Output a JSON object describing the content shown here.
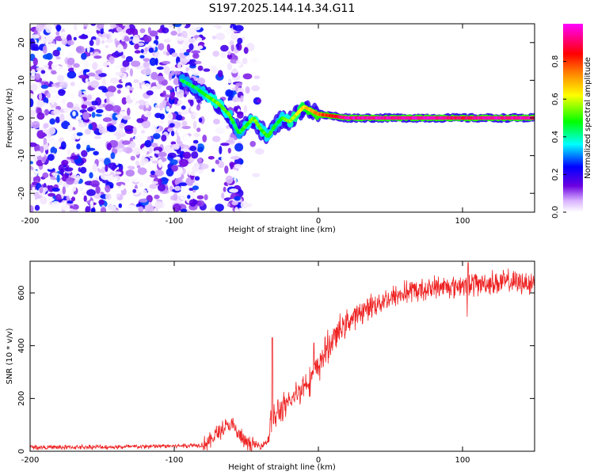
{
  "title": "S197.2025.144.14.34.G11",
  "chart_data": [
    {
      "type": "heatmap",
      "panel": "spectrogram",
      "xlabel": "Height of straight line (km)",
      "ylabel": "Frequency (Hz)",
      "xlim": [
        -200,
        150
      ],
      "ylim": [
        -25,
        25
      ],
      "xticks": [
        -200,
        -100,
        0,
        100
      ],
      "yticks": [
        -20,
        -10,
        0,
        10,
        20
      ],
      "colorbar": {
        "label": "Normalized spectral amplitude",
        "range": [
          0,
          1
        ],
        "ticks": [
          0.0,
          0.2,
          0.4,
          0.6,
          0.8
        ],
        "colormap": [
          "#ffffff",
          "#d9b3ff",
          "#6b00e0",
          "#0000ff",
          "#00ffff",
          "#00ff00",
          "#ffff00",
          "#ff8000",
          "#ff0000",
          "#ff00ff"
        ]
      },
      "ridge": {
        "x": [
          -95,
          -85,
          -78,
          -70,
          -62,
          -58,
          -55,
          -50,
          -45,
          -40,
          -35,
          -30,
          -25,
          -20,
          -15,
          -10,
          -5,
          0,
          10,
          20,
          40,
          60,
          80,
          100,
          120,
          150
        ],
        "y": [
          10,
          8,
          6,
          4,
          1,
          -2,
          -4,
          -2,
          0,
          -3,
          -5,
          -2,
          0,
          -1,
          1,
          3,
          2,
          1,
          0.5,
          0,
          0,
          0,
          0,
          0,
          0,
          0
        ],
        "amp": [
          0.45,
          0.45,
          0.5,
          0.55,
          0.5,
          0.45,
          0.45,
          0.5,
          0.55,
          0.5,
          0.5,
          0.45,
          0.5,
          0.55,
          0.6,
          0.65,
          0.7,
          0.75,
          0.85,
          0.95,
          0.95,
          0.95,
          0.95,
          0.9,
          0.95,
          0.95
        ]
      },
      "noise_region_x": [
        -200,
        -80
      ]
    },
    {
      "type": "line",
      "panel": "snr",
      "xlabel": "Height of straight line (km)",
      "ylabel": "SNR (10 * v/v)",
      "xlim": [
        -200,
        150
      ],
      "ylim": [
        0,
        720
      ],
      "xticks": [
        -200,
        -100,
        0,
        100
      ],
      "yticks": [
        0,
        200,
        400,
        600
      ],
      "color": "#ee2222",
      "series": [
        {
          "x": [
            -200,
            -180,
            -160,
            -140,
            -120,
            -100,
            -90,
            -80,
            -75,
            -70,
            -65,
            -60,
            -55,
            -50,
            -45,
            -40,
            -35,
            -32,
            -30,
            -28,
            -25,
            -20,
            -15,
            -10,
            -5,
            0,
            5,
            10,
            15,
            20,
            25,
            30,
            40,
            50,
            60,
            70,
            80,
            90,
            100,
            110,
            120,
            130,
            140,
            150
          ],
          "values": [
            15,
            15,
            16,
            16,
            18,
            20,
            22,
            25,
            40,
            70,
            90,
            100,
            60,
            30,
            25,
            20,
            40,
            150,
            120,
            150,
            160,
            180,
            220,
            250,
            280,
            320,
            380,
            420,
            460,
            490,
            510,
            530,
            560,
            580,
            600,
            610,
            620,
            625,
            630,
            635,
            640,
            640,
            640,
            640
          ]
        }
      ]
    }
  ]
}
